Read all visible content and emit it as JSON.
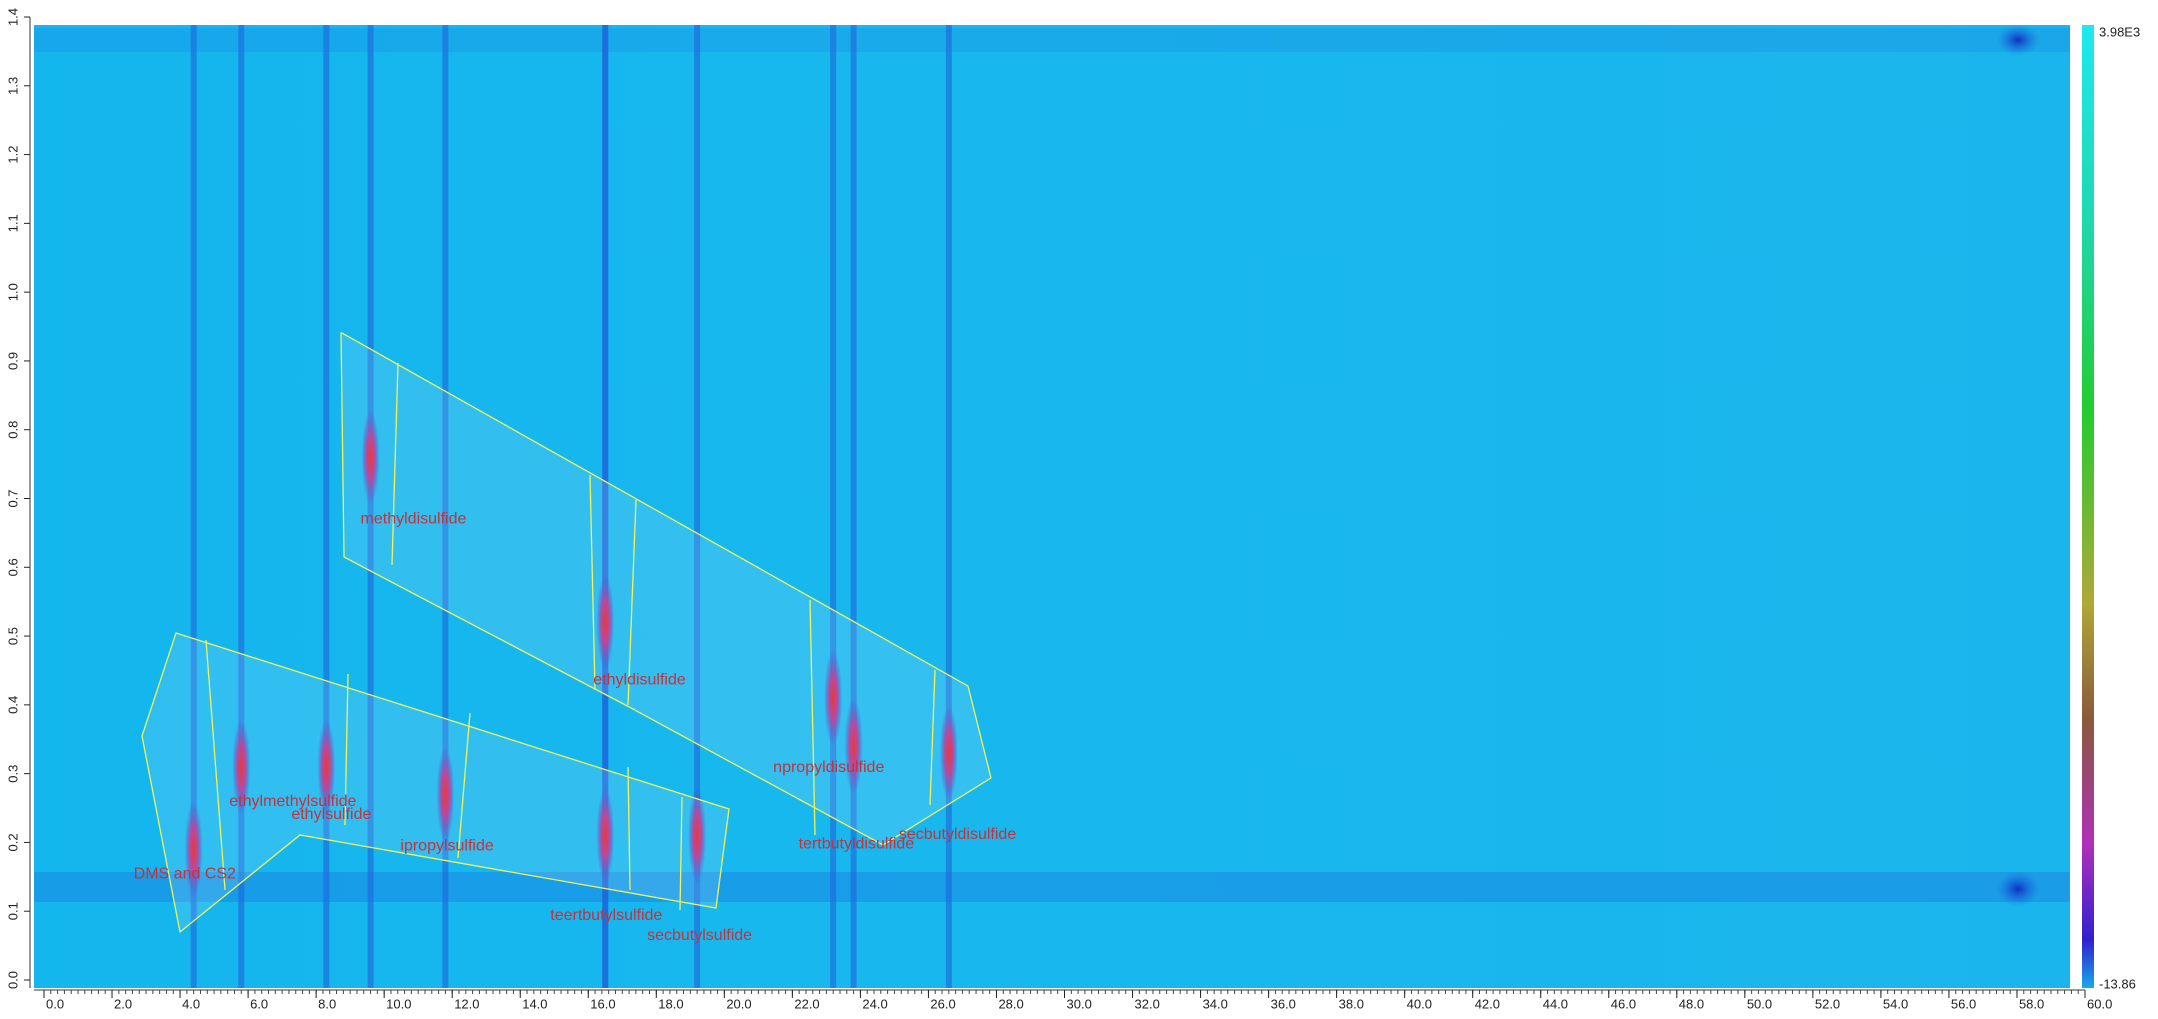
{
  "chart_data": {
    "type": "heatmap",
    "xlim": [
      0,
      60
    ],
    "ylim": [
      0,
      1.4
    ],
    "xticks": [
      {
        "value": 0,
        "label": "0.0"
      },
      {
        "value": 2,
        "label": "2.0"
      },
      {
        "value": 4,
        "label": "4.0"
      },
      {
        "value": 6,
        "label": "6.0"
      },
      {
        "value": 8,
        "label": "8.0"
      },
      {
        "value": 10,
        "label": "10.0"
      },
      {
        "value": 12,
        "label": "12.0"
      },
      {
        "value": 14,
        "label": "14.0"
      },
      {
        "value": 16,
        "label": "16.0"
      },
      {
        "value": 18,
        "label": "18.0"
      },
      {
        "value": 20,
        "label": "20.0"
      },
      {
        "value": 22,
        "label": "22.0"
      },
      {
        "value": 24,
        "label": "24.0"
      },
      {
        "value": 26,
        "label": "26.0"
      },
      {
        "value": 28,
        "label": "28.0"
      },
      {
        "value": 30,
        "label": "30.0"
      },
      {
        "value": 32,
        "label": "32.0"
      },
      {
        "value": 34,
        "label": "34.0"
      },
      {
        "value": 36,
        "label": "36.0"
      },
      {
        "value": 38,
        "label": "38.0"
      },
      {
        "value": 40,
        "label": "40.0"
      },
      {
        "value": 42,
        "label": "42.0"
      },
      {
        "value": 44,
        "label": "44.0"
      },
      {
        "value": 46,
        "label": "46.0"
      },
      {
        "value": 48,
        "label": "48.0"
      },
      {
        "value": 50,
        "label": "50.0"
      },
      {
        "value": 52,
        "label": "52.0"
      },
      {
        "value": 54,
        "label": "54.0"
      },
      {
        "value": 56,
        "label": "56.0"
      },
      {
        "value": 58,
        "label": "58.0"
      },
      {
        "value": 60,
        "label": "60.0"
      }
    ],
    "yticks": [
      {
        "value": 0,
        "label": "0.0"
      },
      {
        "value": 0.1,
        "label": "0.1"
      },
      {
        "value": 0.2,
        "label": "0.2"
      },
      {
        "value": 0.3,
        "label": "0.3"
      },
      {
        "value": 0.4,
        "label": "0.4"
      },
      {
        "value": 0.5,
        "label": "0.5"
      },
      {
        "value": 0.6,
        "label": "0.6"
      },
      {
        "value": 0.7,
        "label": "0.7"
      },
      {
        "value": 0.8,
        "label": "0.8"
      },
      {
        "value": 0.9,
        "label": "0.9"
      },
      {
        "value": 1,
        "label": "1.0"
      },
      {
        "value": 1.1,
        "label": "1.1"
      },
      {
        "value": 1.2,
        "label": "1.2"
      },
      {
        "value": 1.3,
        "label": "1.3"
      },
      {
        "value": 1.4,
        "label": "1.4"
      }
    ],
    "colorbar": {
      "max": {
        "value": 3980,
        "label": "3.98E3"
      },
      "min": -13.86
    },
    "peaks": [
      {
        "label": "methyldisulfide",
        "x": 9.6,
        "y": 0.76
      },
      {
        "label": "ethyldisulfide",
        "x": 16.5,
        "y": 0.52
      },
      {
        "label": "DMS and CS2",
        "x": 4.4,
        "y": 0.19
      },
      {
        "label": "ethylmethylsulfide",
        "x": 5.8,
        "y": 0.31
      },
      {
        "label": "ethylsulfide",
        "x": 8.3,
        "y": 0.31
      },
      {
        "label": "ipropylsulfide",
        "x": 11.8,
        "y": 0.27
      },
      {
        "label": "teertbutylsulfide",
        "x": 16.5,
        "y": 0.21
      },
      {
        "label": "secbutylsulfide",
        "x": 19.2,
        "y": 0.21
      },
      {
        "label": "npropyldisulfide",
        "x": 23.2,
        "y": 0.41
      },
      {
        "label": "tertbutyldisulfide",
        "x": 23.8,
        "y": 0.34
      },
      {
        "label": "secbutyldisulfide",
        "x": 26.6,
        "y": 0.33
      }
    ]
  }
}
